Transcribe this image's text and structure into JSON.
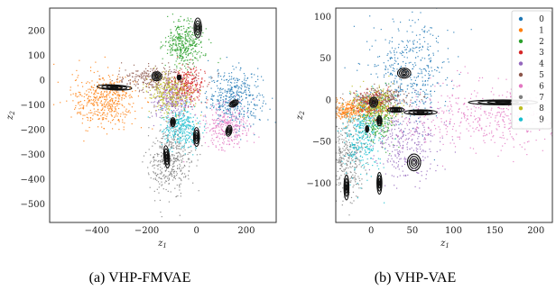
{
  "chart_data": [
    {
      "type": "scatter",
      "caption": "(a) VHP-FMVAE",
      "xlabel": "z",
      "xlabel_sub": "1",
      "ylabel": "z",
      "ylabel_sub": "2",
      "xlim": [
        -590,
        320
      ],
      "ylim": [
        -575,
        290
      ],
      "xticks": [
        -400,
        -200,
        0,
        200
      ],
      "yticks": [
        200,
        100,
        0,
        -100,
        -200,
        -300,
        -400,
        -500
      ],
      "xtick_labels": [
        "−400",
        "−200",
        "0",
        "200"
      ],
      "ytick_labels": [
        "200",
        "100",
        "0",
        "−100",
        "−200",
        "−300",
        "−400",
        "−500"
      ],
      "legend": "none",
      "grid": false,
      "clusters": [
        {
          "digit": "0",
          "color": "#1f77b4",
          "x": 150,
          "y": -70,
          "sx": 55,
          "sy": 55,
          "n": 420
        },
        {
          "digit": "1",
          "color": "#ff7f0e",
          "x": -370,
          "y": -80,
          "sx": 65,
          "sy": 55,
          "n": 480
        },
        {
          "digit": "2",
          "color": "#2ca02c",
          "x": -50,
          "y": 150,
          "sx": 40,
          "sy": 45,
          "n": 380
        },
        {
          "digit": "3",
          "color": "#d62728",
          "x": -40,
          "y": -20,
          "sx": 35,
          "sy": 35,
          "n": 300
        },
        {
          "digit": "4",
          "color": "#9467bd",
          "x": -100,
          "y": -80,
          "sx": 40,
          "sy": 40,
          "n": 280
        },
        {
          "digit": "5",
          "color": "#8c564b",
          "x": -180,
          "y": 10,
          "sx": 70,
          "sy": 25,
          "n": 260
        },
        {
          "digit": "6",
          "color": "#e377c2",
          "x": 120,
          "y": -190,
          "sx": 55,
          "sy": 45,
          "n": 300
        },
        {
          "digit": "7",
          "color": "#7f7f7f",
          "x": -110,
          "y": -320,
          "sx": 45,
          "sy": 65,
          "n": 420
        },
        {
          "digit": "8",
          "color": "#bcbd22",
          "x": -110,
          "y": -50,
          "sx": 45,
          "sy": 40,
          "n": 300
        },
        {
          "digit": "9",
          "color": "#17becf",
          "x": -60,
          "y": -190,
          "sx": 40,
          "sy": 40,
          "n": 320
        }
      ],
      "contours": [
        {
          "x": 5,
          "y": 210,
          "rx": 15,
          "ry": 40,
          "rot": 0
        },
        {
          "x": -330,
          "y": -30,
          "rx": 70,
          "ry": 10,
          "rot": -3
        },
        {
          "x": -160,
          "y": 15,
          "rx": 20,
          "ry": 18,
          "rot": 0
        },
        {
          "x": -70,
          "y": 10,
          "rx": 8,
          "ry": 10,
          "rot": 0
        },
        {
          "x": 150,
          "y": -95,
          "rx": 20,
          "ry": 12,
          "rot": 30
        },
        {
          "x": -95,
          "y": -170,
          "rx": 10,
          "ry": 18,
          "rot": 0
        },
        {
          "x": 0,
          "y": -230,
          "rx": 12,
          "ry": 38,
          "rot": 0
        },
        {
          "x": 130,
          "y": -205,
          "rx": 12,
          "ry": 22,
          "rot": -10
        },
        {
          "x": -120,
          "y": -310,
          "rx": 11,
          "ry": 45,
          "rot": 5
        }
      ]
    },
    {
      "type": "scatter",
      "caption": "(b) VHP-VAE",
      "xlabel": "z",
      "xlabel_sub": "1",
      "ylabel": "z",
      "ylabel_sub": "2",
      "xlim": [
        -43,
        220
      ],
      "ylim": [
        -147,
        110
      ],
      "xticks": [
        0,
        50,
        100,
        150,
        200
      ],
      "yticks": [
        100,
        50,
        0,
        -50,
        -100
      ],
      "xtick_labels": [
        "0",
        "50",
        "100",
        "150",
        "200"
      ],
      "ytick_labels": [
        "100",
        "50",
        "0",
        "−50",
        "−100"
      ],
      "legend": "top-right",
      "grid": false,
      "legend_entries": [
        "0",
        "1",
        "2",
        "3",
        "4",
        "5",
        "6",
        "7",
        "8",
        "9"
      ],
      "legend_colors": [
        "#1f77b4",
        "#ff7f0e",
        "#2ca02c",
        "#d62728",
        "#9467bd",
        "#8c564b",
        "#e377c2",
        "#7f7f7f",
        "#bcbd22",
        "#17becf"
      ],
      "clusters": [
        {
          "digit": "0",
          "color": "#1f77b4",
          "x": 45,
          "y": 35,
          "sx": 25,
          "sy": 30,
          "n": 420
        },
        {
          "digit": "1",
          "color": "#ff7f0e",
          "x": -25,
          "y": -12,
          "sx": 12,
          "sy": 6,
          "n": 300
        },
        {
          "digit": "2",
          "color": "#2ca02c",
          "x": 8,
          "y": -20,
          "sx": 10,
          "sy": 15,
          "n": 300
        },
        {
          "digit": "3",
          "color": "#d62728",
          "x": 0,
          "y": -5,
          "sx": 10,
          "sy": 8,
          "n": 220
        },
        {
          "digit": "4",
          "color": "#9467bd",
          "x": 40,
          "y": -50,
          "sx": 22,
          "sy": 25,
          "n": 320
        },
        {
          "digit": "5",
          "color": "#8c564b",
          "x": 10,
          "y": 3,
          "sx": 18,
          "sy": 6,
          "n": 250
        },
        {
          "digit": "6",
          "color": "#e377c2",
          "x": 140,
          "y": -20,
          "sx": 60,
          "sy": 20,
          "n": 480
        },
        {
          "digit": "7",
          "color": "#7f7f7f",
          "x": -30,
          "y": -70,
          "sx": 10,
          "sy": 25,
          "n": 320
        },
        {
          "digit": "8",
          "color": "#bcbd22",
          "x": 5,
          "y": -5,
          "sx": 14,
          "sy": 10,
          "n": 250
        },
        {
          "digit": "9",
          "color": "#17becf",
          "x": -12,
          "y": -45,
          "sx": 12,
          "sy": 20,
          "n": 320
        }
      ],
      "contours": [
        {
          "x": 40,
          "y": 32,
          "rx": 8,
          "ry": 6,
          "rot": 0
        },
        {
          "x": 3,
          "y": -3,
          "rx": 5,
          "ry": 6,
          "rot": 0
        },
        {
          "x": 30,
          "y": -12,
          "rx": 10,
          "ry": 3,
          "rot": 0
        },
        {
          "x": 60,
          "y": -15,
          "rx": 20,
          "ry": 3,
          "rot": 0
        },
        {
          "x": 160,
          "y": -3,
          "rx": 42,
          "ry": 3,
          "rot": 0
        },
        {
          "x": 10,
          "y": -25,
          "rx": 3,
          "ry": 6,
          "rot": 0
        },
        {
          "x": -5,
          "y": -35,
          "rx": 2,
          "ry": 4,
          "rot": 0
        },
        {
          "x": 52,
          "y": -75,
          "rx": 8,
          "ry": 10,
          "rot": 0
        },
        {
          "x": -30,
          "y": -105,
          "rx": 3,
          "ry": 15,
          "rot": 0
        },
        {
          "x": 10,
          "y": -100,
          "rx": 3,
          "ry": 13,
          "rot": 0
        }
      ]
    }
  ]
}
